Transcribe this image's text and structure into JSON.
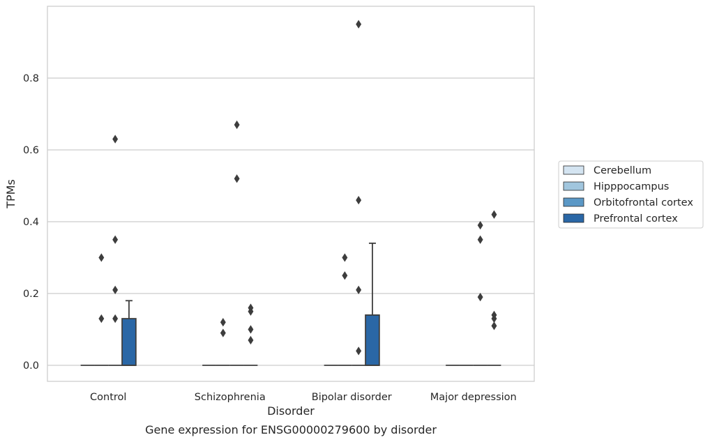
{
  "chart_data": {
    "type": "box",
    "title": "Gene expression for ENSG00000279600 by disorder",
    "xlabel": "Disorder",
    "ylabel": "TPMs",
    "ylim": [
      -0.045,
      0.995
    ],
    "yticks": [
      0.0,
      0.2,
      0.4,
      0.6,
      0.8
    ],
    "ytick_labels": [
      "0.0",
      "0.2",
      "0.4",
      "0.6",
      "0.8"
    ],
    "grid": true,
    "legend_position": "right",
    "categories": [
      "Control",
      "Schizophrenia",
      "Bipolar disorder",
      "Major depression"
    ],
    "series": [
      {
        "name": "Cerebellum",
        "color": "#d4e4f1",
        "boxes": [
          {
            "q1": 0.0,
            "median": 0.0,
            "q3": 0.0,
            "whisker_low": 0.0,
            "whisker_high": 0.0,
            "outliers": []
          },
          {
            "q1": 0.0,
            "median": 0.0,
            "q3": 0.0,
            "whisker_low": 0.0,
            "whisker_high": 0.0,
            "outliers": []
          },
          {
            "q1": 0.0,
            "median": 0.0,
            "q3": 0.0,
            "whisker_low": 0.0,
            "whisker_high": 0.0,
            "outliers": []
          },
          {
            "q1": 0.0,
            "median": 0.0,
            "q3": 0.0,
            "whisker_low": 0.0,
            "whisker_high": 0.0,
            "outliers": []
          }
        ]
      },
      {
        "name": "Hipppocampus",
        "color": "#a1c6de",
        "boxes": [
          {
            "q1": 0.0,
            "median": 0.0,
            "q3": 0.0,
            "whisker_low": 0.0,
            "whisker_high": 0.0,
            "outliers": [
              0.13,
              0.3
            ]
          },
          {
            "q1": 0.0,
            "median": 0.0,
            "q3": 0.0,
            "whisker_low": 0.0,
            "whisker_high": 0.0,
            "outliers": [
              0.09,
              0.12
            ]
          },
          {
            "q1": 0.0,
            "median": 0.0,
            "q3": 0.0,
            "whisker_low": 0.0,
            "whisker_high": 0.0,
            "outliers": [
              0.25,
              0.3
            ]
          },
          {
            "q1": 0.0,
            "median": 0.0,
            "q3": 0.0,
            "whisker_low": 0.0,
            "whisker_high": 0.0,
            "outliers": []
          }
        ]
      },
      {
        "name": "Orbitofrontal cortex",
        "color": "#5b98c6",
        "boxes": [
          {
            "q1": 0.0,
            "median": 0.0,
            "q3": 0.0,
            "whisker_low": 0.0,
            "whisker_high": 0.0,
            "outliers": [
              0.21,
              0.35
            ]
          },
          {
            "q1": 0.0,
            "median": 0.0,
            "q3": 0.0,
            "whisker_low": 0.0,
            "whisker_high": 0.0,
            "outliers": [
              0.52
            ]
          },
          {
            "q1": 0.0,
            "median": 0.0,
            "q3": 0.0,
            "whisker_low": 0.0,
            "whisker_high": 0.0,
            "outliers": [
              0.21
            ]
          },
          {
            "q1": 0.0,
            "median": 0.0,
            "q3": 0.0,
            "whisker_low": 0.0,
            "whisker_high": 0.0,
            "outliers": [
              0.19,
              0.35,
              0.39
            ]
          }
        ]
      },
      {
        "name": "Prefrontal cortex",
        "color": "#2a67a6",
        "boxes": [
          {
            "q1": 0.0,
            "median": 0.0,
            "q3": 0.13,
            "whisker_low": 0.0,
            "whisker_high": 0.18,
            "outliers": []
          },
          {
            "q1": 0.0,
            "median": 0.0,
            "q3": 0.0,
            "whisker_low": 0.0,
            "whisker_high": 0.0,
            "outliers": [
              0.07,
              0.15
            ]
          },
          {
            "q1": 0.0,
            "median": 0.0,
            "q3": 0.14,
            "whisker_low": 0.0,
            "whisker_high": 0.34,
            "outliers": []
          },
          {
            "q1": 0.0,
            "median": 0.0,
            "q3": 0.0,
            "whisker_low": 0.0,
            "whisker_high": 0.0,
            "outliers": [
              0.11,
              0.42
            ]
          }
        ]
      }
    ],
    "extra_points": [
      {
        "category_index": 0,
        "between_series": [
          2,
          3
        ],
        "values": [
          0.13,
          0.63
        ]
      },
      {
        "category_index": 1,
        "between_series": [
          2,
          3
        ],
        "values": [
          0.67
        ]
      },
      {
        "category_index": 1,
        "between_series": [
          3,
          4
        ],
        "values": [
          0.1,
          0.16
        ]
      },
      {
        "category_index": 2,
        "between_series": [
          2,
          3
        ],
        "values": [
          0.04,
          0.46,
          0.95
        ]
      },
      {
        "category_index": 3,
        "between_series": [
          3,
          4
        ],
        "values": [
          0.13,
          0.14
        ]
      }
    ]
  }
}
